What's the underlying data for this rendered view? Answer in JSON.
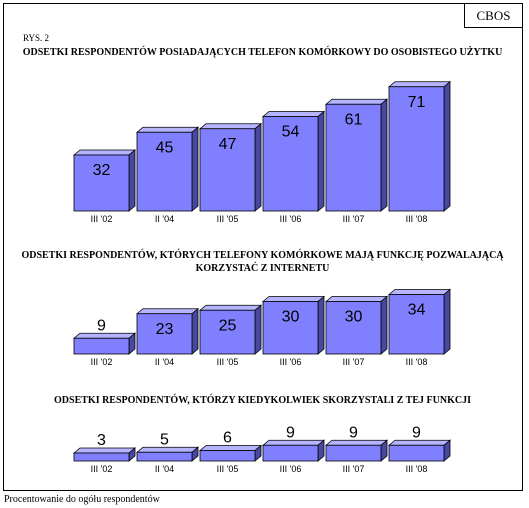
{
  "badge": "CBOS",
  "figure_label": "RYS. 2",
  "footer_note": "Procentowanie do ogółu respondentów",
  "colors": {
    "bar_front": "#8080ff",
    "bar_top": "#b4b4ff",
    "bar_side": "#4848a0",
    "edge": "#000000"
  },
  "chart_data": [
    {
      "type": "bar",
      "title": "ODSETKI RESPONDENTÓW POSIADAJĄCYCH TELEFON KOMÓRKOWY DO OSOBISTEGO UŻYTKU",
      "categories": [
        "III '02",
        "II '04",
        "III '05",
        "III '06",
        "III '07",
        "III '08"
      ],
      "values": [
        32,
        45,
        47,
        54,
        61,
        71
      ],
      "ylim": [
        0,
        75
      ]
    },
    {
      "type": "bar",
      "title": "ODSETKI RESPONDENTÓW, KTÓRYCH TELEFONY KOMÓRKOWE MAJĄ FUNKCJĘ POZWALAJĄCĄ KORZYSTAĆ Z INTERNETU",
      "categories": [
        "III '02",
        "II '04",
        "III '05",
        "III '06",
        "III '07",
        "III '08"
      ],
      "values": [
        9,
        23,
        25,
        30,
        30,
        34
      ],
      "ylim": [
        0,
        75
      ]
    },
    {
      "type": "bar",
      "title": "ODSETKI RESPONDENTÓW, KTÓRZY KIEDYKOLWIEK SKORZYSTALI Z TEJ FUNKCJI",
      "categories": [
        "III '02",
        "II '04",
        "III '05",
        "III '06",
        "III '07",
        "III '08"
      ],
      "values": [
        3,
        5,
        6,
        9,
        9,
        9
      ],
      "ylim": [
        0,
        75
      ]
    }
  ]
}
